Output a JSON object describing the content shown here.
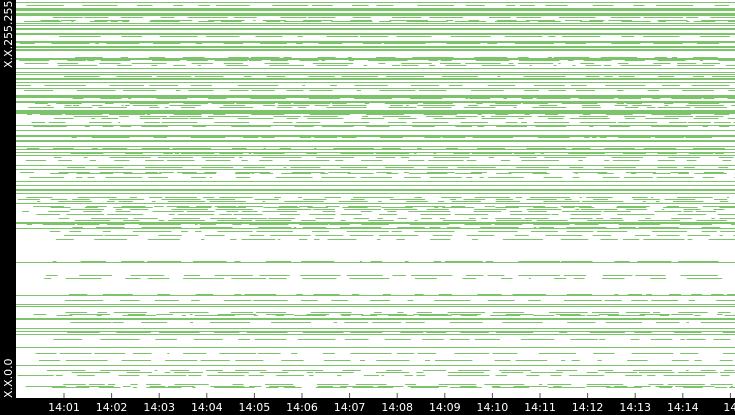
{
  "axis": {
    "top_label": "X.X.255.255",
    "bottom_label": "X.X.0.0"
  },
  "time_labels": [
    "14:01",
    "14:02",
    "14:03",
    "14:04",
    "14:05",
    "14:06",
    "14:07",
    "14:08",
    "14:09",
    "14:10",
    "14:11",
    "14:12",
    "14:13",
    "14:14",
    "14"
  ]
}
